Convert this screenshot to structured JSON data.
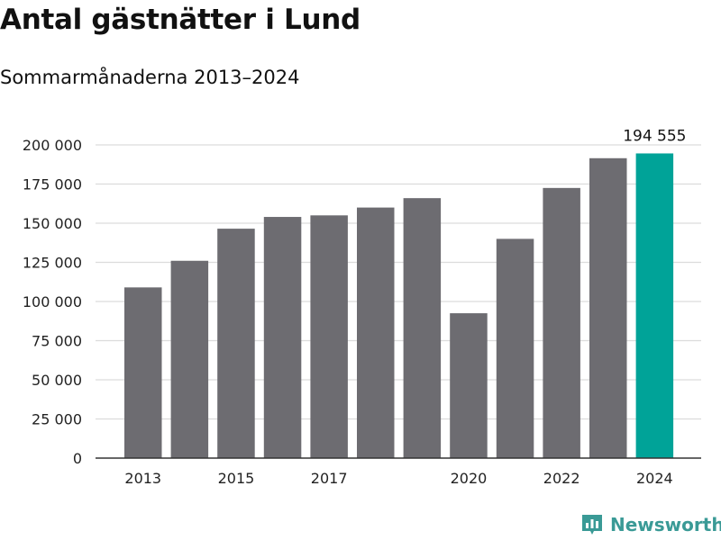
{
  "title": "Antal gästnätter i Lund",
  "subtitle": "Sommarmånaderna 2013–2024",
  "brand": "Newsworthy",
  "colors": {
    "bar": "#6d6c71",
    "highlight": "#00a398",
    "grid": "#dcdcdc",
    "axis": "#333333",
    "brand": "#3a9a96"
  },
  "chart_data": {
    "type": "bar",
    "title": "Antal gästnätter i Lund",
    "subtitle": "Sommarmånaderna 2013–2024",
    "categories": [
      "2013",
      "2014",
      "2015",
      "2016",
      "2017",
      "2018",
      "2019",
      "2020",
      "2021",
      "2022",
      "2023",
      "2024"
    ],
    "values": [
      109000,
      126000,
      146500,
      154000,
      155000,
      160000,
      166000,
      92500,
      140000,
      172500,
      191500,
      194555
    ],
    "highlight_index": 11,
    "highlight_label": "194 555",
    "x_tick_labels": [
      "2013",
      "",
      "2015",
      "",
      "2017",
      "",
      "",
      "2020",
      "",
      "2022",
      "",
      "2024"
    ],
    "y_ticks": [
      0,
      25000,
      50000,
      75000,
      100000,
      125000,
      150000,
      175000,
      200000
    ],
    "y_tick_labels": [
      "0",
      "25 000",
      "50 000",
      "75 000",
      "100 000",
      "125 000",
      "150 000",
      "175 000",
      "200 000"
    ],
    "ylim": [
      0,
      200000
    ],
    "grid": true,
    "legend": "none"
  }
}
